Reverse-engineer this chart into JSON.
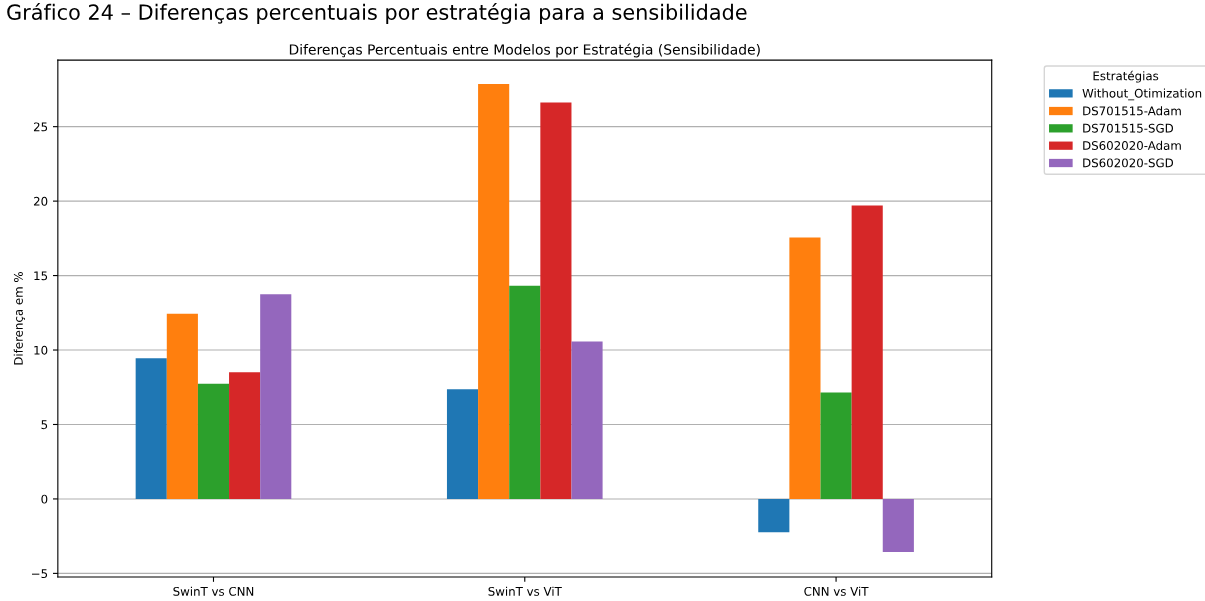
{
  "chart_data": {
    "type": "bar",
    "title": "Diferenças Percentuais entre Modelos por Estratégia (Sensibilidade)",
    "annotations": [
      "Gráfico 24 – Diferenças percentuais por estratégia para a sensibilidade"
    ],
    "ylabel": "Diferença em %",
    "legend_title": "Estratégias",
    "categories": [
      "SwinT vs CNN",
      "SwinT vs ViT",
      "CNN vs ViT"
    ],
    "series": [
      {
        "name": "Without_Otimization",
        "color": "#1f77b4",
        "values": [
          9.45,
          7.36,
          -2.24
        ]
      },
      {
        "name": "DS701515-Adam",
        "color": "#ff7f0e",
        "values": [
          12.44,
          27.86,
          17.56
        ]
      },
      {
        "name": "DS701515-SGD",
        "color": "#2ca02c",
        "values": [
          7.73,
          14.31,
          7.15
        ]
      },
      {
        "name": "DS602020-Adam",
        "color": "#d62728",
        "values": [
          8.51,
          26.62,
          19.71
        ]
      },
      {
        "name": "DS602020-SGD",
        "color": "#9467bd",
        "values": [
          13.75,
          10.58,
          -3.56
        ]
      }
    ],
    "ylim": [
      -5.24,
      29.47
    ],
    "yticks": [
      {
        "value": -5,
        "label": "−5"
      },
      0,
      5,
      10,
      15,
      20,
      25
    ],
    "grid": "y",
    "legend": "top right"
  }
}
